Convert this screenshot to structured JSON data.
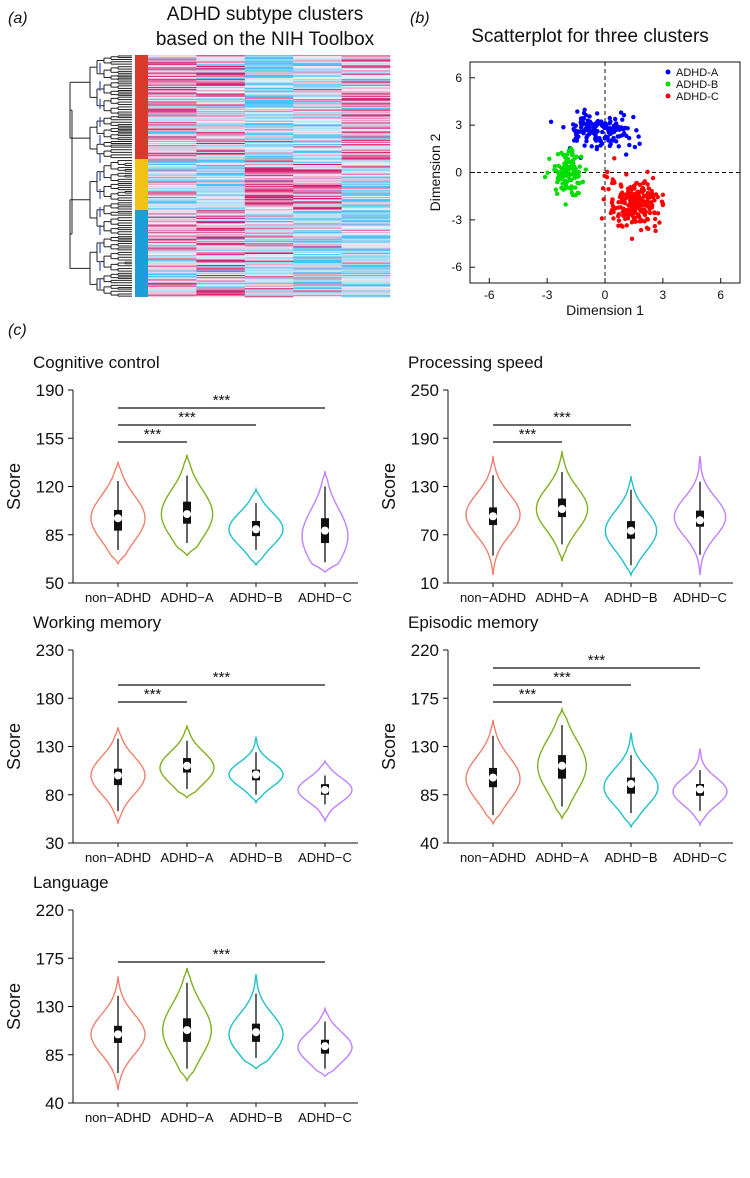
{
  "panels": {
    "a": "(a)",
    "b": "(b)",
    "c": "(c)"
  },
  "heatmap_title": {
    "line1": "ADHD subtype clusters",
    "line2": "based on the NIH Toolbox"
  },
  "colors": {
    "non_adhd": "#f08070",
    "adhd_a": "#80b020",
    "adhd_b": "#20c0c8",
    "adhd_c": "#c080ff",
    "cluster_red": "#d63a2a",
    "cluster_yellow": "#f3c219",
    "cluster_blue": "#1e9cd7",
    "scatter_a": "#0000ff",
    "scatter_b": "#00dd00",
    "scatter_c": "#ff0000",
    "heat_high": "#d0206e",
    "heat_low": "#4cc0f0"
  },
  "chart_data": [
    {
      "id": "heatmap",
      "type": "heatmap",
      "columns": 5,
      "rows": 220,
      "cluster_bar": [
        {
          "cluster": "ADHD-A",
          "color": "cluster_red",
          "fraction": 0.43
        },
        {
          "cluster": "ADHD-B",
          "color": "cluster_yellow",
          "fraction": 0.21
        },
        {
          "cluster": "ADHD-C",
          "color": "cluster_blue",
          "fraction": 0.36
        }
      ],
      "column_pattern": [
        [
          0.3,
          0.2,
          -0.6,
          -0.2,
          0.3
        ],
        [
          -0.4,
          -0.5,
          0.6,
          0.4,
          -0.2
        ],
        [
          0.1,
          0.4,
          -0.1,
          -0.4,
          -0.5
        ]
      ]
    },
    {
      "id": "scatter",
      "type": "scatter",
      "title": "Scatterplot for three clusters",
      "xlabel": "Dimension 1",
      "ylabel": "Dimension 2",
      "xlim": [
        -7,
        7
      ],
      "ylim": [
        -7,
        7
      ],
      "xticks": [
        -6,
        -3,
        0,
        3,
        6
      ],
      "yticks": [
        -6,
        -3,
        0,
        3,
        6
      ],
      "legend_position": "top-right",
      "series": [
        {
          "name": "ADHD-A",
          "color": "scatter_a",
          "center": [
            -0.2,
            2.6
          ],
          "spread": [
            1.7,
            0.9
          ],
          "count": 160
        },
        {
          "name": "ADHD-B",
          "color": "scatter_b",
          "center": [
            -1.9,
            0.0
          ],
          "spread": [
            0.8,
            1.3
          ],
          "count": 110
        },
        {
          "name": "ADHD-C",
          "color": "scatter_c",
          "center": [
            1.5,
            -2.0
          ],
          "spread": [
            1.2,
            1.5
          ],
          "count": 210
        }
      ]
    },
    {
      "id": "cognitive-control",
      "type": "violin",
      "title": "Cognitive control",
      "ylabel": "Score",
      "ylim": [
        50,
        190
      ],
      "yticks": [
        50,
        85,
        120,
        155,
        190
      ],
      "categories": [
        "non−ADHD",
        "ADHD−A",
        "ADHD−B",
        "ADHD−C"
      ],
      "groups": [
        {
          "min": 64,
          "max": 138,
          "q1": 88,
          "median": 97,
          "q3": 103,
          "whisker_low": 74,
          "whisker_high": 124,
          "mode": 97,
          "width": 1.0
        },
        {
          "min": 70,
          "max": 143,
          "q1": 93,
          "median": 100,
          "q3": 109,
          "whisker_low": 79,
          "whisker_high": 128,
          "mode": 100,
          "width": 0.95
        },
        {
          "min": 63,
          "max": 118,
          "q1": 84,
          "median": 89,
          "q3": 95,
          "whisker_low": 74,
          "whisker_high": 108,
          "mode": 89,
          "width": 1.0
        },
        {
          "min": 58,
          "max": 131,
          "q1": 79,
          "median": 88,
          "q3": 97,
          "whisker_low": 65,
          "whisker_high": 120,
          "mode": 84,
          "width": 0.85
        }
      ],
      "significance": [
        {
          "from": 0,
          "to": 1,
          "label": "***"
        },
        {
          "from": 0,
          "to": 2,
          "label": "***"
        },
        {
          "from": 0,
          "to": 3,
          "label": "***"
        }
      ]
    },
    {
      "id": "processing-speed",
      "type": "violin",
      "title": "Processing speed",
      "ylabel": "Score",
      "ylim": [
        10,
        250
      ],
      "yticks": [
        10,
        70,
        130,
        190,
        250
      ],
      "categories": [
        "non−ADHD",
        "ADHD−A",
        "ADHD−B",
        "ADHD−C"
      ],
      "groups": [
        {
          "min": 20,
          "max": 168,
          "q1": 82,
          "median": 93,
          "q3": 104,
          "whisker_low": 44,
          "whisker_high": 144,
          "mode": 95,
          "width": 1.0
        },
        {
          "min": 37,
          "max": 174,
          "q1": 92,
          "median": 102,
          "q3": 115,
          "whisker_low": 58,
          "whisker_high": 148,
          "mode": 102,
          "width": 0.95
        },
        {
          "min": 20,
          "max": 143,
          "q1": 65,
          "median": 75,
          "q3": 87,
          "whisker_low": 32,
          "whisker_high": 126,
          "mode": 75,
          "width": 0.95
        },
        {
          "min": 20,
          "max": 168,
          "q1": 80,
          "median": 88,
          "q3": 100,
          "whisker_low": 45,
          "whisker_high": 136,
          "mode": 92,
          "width": 0.95
        }
      ],
      "significance": [
        {
          "from": 0,
          "to": 1,
          "label": "***"
        },
        {
          "from": 0,
          "to": 2,
          "label": "***"
        }
      ]
    },
    {
      "id": "working-memory",
      "type": "violin",
      "title": "Working memory",
      "ylabel": "Score",
      "ylim": [
        30,
        230
      ],
      "yticks": [
        30,
        80,
        130,
        180,
        230
      ],
      "categories": [
        "non−ADHD",
        "ADHD−A",
        "ADHD−B",
        "ADHD−C"
      ],
      "groups": [
        {
          "min": 50,
          "max": 150,
          "q1": 90,
          "median": 100,
          "q3": 107,
          "whisker_low": 63,
          "whisker_high": 138,
          "mode": 100,
          "width": 1.0
        },
        {
          "min": 77,
          "max": 152,
          "q1": 103,
          "median": 110,
          "q3": 118,
          "whisker_low": 86,
          "whisker_high": 136,
          "mode": 108,
          "width": 1.0
        },
        {
          "min": 72,
          "max": 140,
          "q1": 95,
          "median": 101,
          "q3": 106,
          "whisker_low": 80,
          "whisker_high": 124,
          "mode": 101,
          "width": 1.0
        },
        {
          "min": 53,
          "max": 115,
          "q1": 80,
          "median": 85,
          "q3": 91,
          "whisker_low": 70,
          "whisker_high": 100,
          "mode": 85,
          "width": 1.0
        }
      ],
      "significance": [
        {
          "from": 0,
          "to": 1,
          "label": "***"
        },
        {
          "from": 0,
          "to": 3,
          "label": "***"
        }
      ]
    },
    {
      "id": "episodic-memory",
      "type": "violin",
      "title": "Episodic memory",
      "ylabel": "Score",
      "ylim": [
        40,
        220
      ],
      "yticks": [
        40,
        85,
        130,
        175,
        220
      ],
      "categories": [
        "non−ADHD",
        "ADHD−A",
        "ADHD−B",
        "ADHD−C"
      ],
      "groups": [
        {
          "min": 58,
          "max": 155,
          "q1": 92,
          "median": 101,
          "q3": 110,
          "whisker_low": 66,
          "whisker_high": 140,
          "mode": 100,
          "width": 1.0
        },
        {
          "min": 63,
          "max": 165,
          "q1": 100,
          "median": 112,
          "q3": 122,
          "whisker_low": 74,
          "whisker_high": 150,
          "mode": 112,
          "width": 0.9
        },
        {
          "min": 55,
          "max": 143,
          "q1": 86,
          "median": 95,
          "q3": 101,
          "whisker_low": 68,
          "whisker_high": 122,
          "mode": 92,
          "width": 1.0
        },
        {
          "min": 57,
          "max": 128,
          "q1": 84,
          "median": 90,
          "q3": 95,
          "whisker_low": 70,
          "whisker_high": 108,
          "mode": 88,
          "width": 1.0
        }
      ],
      "significance": [
        {
          "from": 0,
          "to": 1,
          "label": "***"
        },
        {
          "from": 0,
          "to": 2,
          "label": "***"
        },
        {
          "from": 0,
          "to": 3,
          "label": "***"
        }
      ]
    },
    {
      "id": "language",
      "type": "violin",
      "title": "Language",
      "ylabel": "Score",
      "ylim": [
        40,
        220
      ],
      "yticks": [
        40,
        85,
        130,
        175,
        220
      ],
      "categories": [
        "non−ADHD",
        "ADHD−A",
        "ADHD−B",
        "ADHD−C"
      ],
      "groups": [
        {
          "min": 52,
          "max": 158,
          "q1": 96,
          "median": 104,
          "q3": 112,
          "whisker_low": 68,
          "whisker_high": 140,
          "mode": 104,
          "width": 1.0
        },
        {
          "min": 61,
          "max": 166,
          "q1": 97,
          "median": 108,
          "q3": 119,
          "whisker_low": 72,
          "whisker_high": 152,
          "mode": 108,
          "width": 0.9
        },
        {
          "min": 72,
          "max": 160,
          "q1": 97,
          "median": 106,
          "q3": 114,
          "whisker_low": 82,
          "whisker_high": 142,
          "mode": 104,
          "width": 1.0
        },
        {
          "min": 65,
          "max": 128,
          "q1": 86,
          "median": 93,
          "q3": 99,
          "whisker_low": 72,
          "whisker_high": 116,
          "mode": 92,
          "width": 1.0
        }
      ],
      "significance": [
        {
          "from": 0,
          "to": 3,
          "label": "***"
        }
      ]
    }
  ]
}
